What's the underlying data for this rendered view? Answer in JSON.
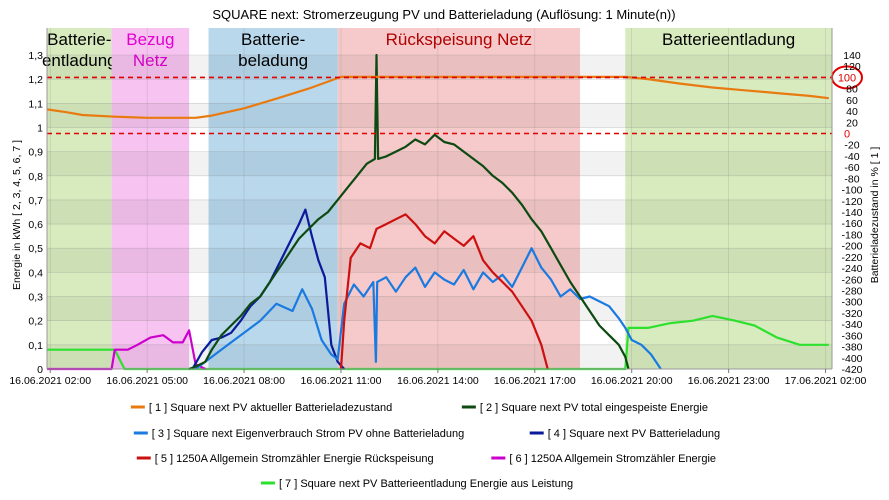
{
  "chart_data": {
    "type": "line",
    "title": "SQUARE next: Stromerzeugung PV und Batterieladung (Auflösung: 1 Minute(n))",
    "ylabel": "Energie in kWh [ 2, 3, 4, 5, 6, 7 ]",
    "y2label": "Batterieladezustand in % [ 1 ]",
    "ylim": [
      0,
      1.3
    ],
    "y2lim": [
      -420,
      140
    ],
    "y_ticks": [
      "0",
      "0,1",
      "0,2",
      "0,3",
      "0,4",
      "0,5",
      "0,6",
      "0,7",
      "0,8",
      "0,9",
      "1",
      "1,1",
      "1,2",
      "1,3"
    ],
    "y2_ticks": [
      "-420",
      "-400",
      "-380",
      "-360",
      "-340",
      "-320",
      "-300",
      "-280",
      "-260",
      "-240",
      "-220",
      "-200",
      "-180",
      "-160",
      "-140",
      "-120",
      "-100",
      "-80",
      "-60",
      "-40",
      "-20",
      "0",
      "20",
      "40",
      "60",
      "80",
      "100",
      "120",
      "140"
    ],
    "x_ticks": [
      {
        "t": 0,
        "label": "16.06.2021 02:00"
      },
      {
        "t": 3,
        "label": "16.06.2021 05:00"
      },
      {
        "t": 6,
        "label": "16.06.2021 08:00"
      },
      {
        "t": 9,
        "label": "16.06.2021 11:00"
      },
      {
        "t": 12,
        "label": "16.06.2021 14:00"
      },
      {
        "t": 15,
        "label": "16.06.2021 17:00"
      },
      {
        "t": 18,
        "label": "16.06.2021 20:00"
      },
      {
        "t": 21,
        "label": "16.06.2021 23:00"
      },
      {
        "t": 24,
        "label": "17.06.2021 02:00"
      }
    ],
    "xlim": [
      -0.1,
      24.2
    ],
    "grid": true,
    "zones": [
      {
        "label": "Batterie-\nentladung",
        "from": -0.1,
        "to": 1.9,
        "color": "#d8ebbf",
        "text_color": "#000000"
      },
      {
        "label": "Bezug\nNetz",
        "from": 1.9,
        "to": 4.3,
        "color": "#f7c3f0",
        "text_color": "#e000d0"
      },
      {
        "label": "Batterie-\nbeladung",
        "from": 4.9,
        "to": 8.9,
        "color": "#b9d8ec",
        "text_color": "#000000"
      },
      {
        "label": "Rückspeisung Netz",
        "from": 8.9,
        "to": 16.4,
        "color": "#f6caca",
        "text_color": "#b00000"
      },
      {
        "label": "Batterieentladung",
        "from": 17.8,
        "to": 24.2,
        "color": "#d8ebbf",
        "text_color": "#000000"
      }
    ],
    "reference_lines": [
      {
        "y2": 100,
        "label": "100",
        "color": "#e00000"
      },
      {
        "y2": 0,
        "label": "0",
        "color": "#e00000"
      }
    ],
    "series": [
      {
        "id": 1,
        "name": "[ 1 ] Square next PV aktueller Batterieladezustand",
        "color": "#e87a10",
        "axis": "y2",
        "points": [
          [
            -0.1,
            43
          ],
          [
            0.5,
            38
          ],
          [
            1,
            33
          ],
          [
            2,
            30
          ],
          [
            3,
            28
          ],
          [
            4.5,
            28
          ],
          [
            5,
            32
          ],
          [
            6,
            45
          ],
          [
            7,
            62
          ],
          [
            8,
            80
          ],
          [
            9,
            101
          ],
          [
            10,
            101
          ],
          [
            12,
            101
          ],
          [
            14,
            101
          ],
          [
            16,
            101
          ],
          [
            17.8,
            101
          ],
          [
            18.5,
            97
          ],
          [
            19.5,
            89
          ],
          [
            20.5,
            82
          ],
          [
            21.5,
            77
          ],
          [
            22.5,
            72
          ],
          [
            23.5,
            67
          ],
          [
            24.1,
            63
          ]
        ]
      },
      {
        "id": 2,
        "name": "[ 2 ] Square next PV total eingespeiste Energie",
        "color": "#0d4a12",
        "axis": "y",
        "points": [
          [
            4.3,
            0
          ],
          [
            4.5,
            0.01
          ],
          [
            4.8,
            0.03
          ],
          [
            5,
            0.08
          ],
          [
            5.3,
            0.14
          ],
          [
            5.6,
            0.18
          ],
          [
            5.9,
            0.22
          ],
          [
            6.2,
            0.27
          ],
          [
            6.5,
            0.3
          ],
          [
            6.8,
            0.36
          ],
          [
            7.1,
            0.42
          ],
          [
            7.4,
            0.48
          ],
          [
            7.7,
            0.54
          ],
          [
            8,
            0.58
          ],
          [
            8.3,
            0.62
          ],
          [
            8.6,
            0.65
          ],
          [
            8.9,
            0.7
          ],
          [
            9.2,
            0.75
          ],
          [
            9.5,
            0.8
          ],
          [
            9.8,
            0.85
          ],
          [
            10.05,
            0.87
          ],
          [
            10.1,
            1.3
          ],
          [
            10.15,
            0.87
          ],
          [
            10.4,
            0.88
          ],
          [
            10.7,
            0.9
          ],
          [
            11,
            0.92
          ],
          [
            11.3,
            0.95
          ],
          [
            11.6,
            0.93
          ],
          [
            11.9,
            0.97
          ],
          [
            12.2,
            0.94
          ],
          [
            12.5,
            0.93
          ],
          [
            12.8,
            0.9
          ],
          [
            13.1,
            0.87
          ],
          [
            13.4,
            0.84
          ],
          [
            13.7,
            0.8
          ],
          [
            14,
            0.77
          ],
          [
            14.3,
            0.73
          ],
          [
            14.6,
            0.68
          ],
          [
            14.9,
            0.62
          ],
          [
            15.2,
            0.57
          ],
          [
            15.5,
            0.5
          ],
          [
            15.8,
            0.43
          ],
          [
            16.1,
            0.36
          ],
          [
            16.4,
            0.3
          ],
          [
            16.7,
            0.24
          ],
          [
            17,
            0.18
          ],
          [
            17.3,
            0.14
          ],
          [
            17.6,
            0.1
          ],
          [
            17.8,
            0.05
          ],
          [
            17.9,
            0
          ]
        ]
      },
      {
        "id": 3,
        "name": "[ 3 ] Square next Eigenverbrauch Strom PV ohne Batterieladung",
        "color": "#1a7ae0",
        "axis": "y",
        "points": [
          [
            4.5,
            0
          ],
          [
            5,
            0.05
          ],
          [
            5.5,
            0.1
          ],
          [
            6,
            0.15
          ],
          [
            6.5,
            0.2
          ],
          [
            7,
            0.27
          ],
          [
            7.5,
            0.24
          ],
          [
            7.8,
            0.33
          ],
          [
            8.1,
            0.25
          ],
          [
            8.4,
            0.12
          ],
          [
            8.7,
            0.06
          ],
          [
            8.9,
            0.04
          ],
          [
            9.1,
            0.27
          ],
          [
            9.4,
            0.35
          ],
          [
            9.7,
            0.3
          ],
          [
            10,
            0.36
          ],
          [
            10.08,
            0.03
          ],
          [
            10.12,
            0.36
          ],
          [
            10.4,
            0.38
          ],
          [
            10.7,
            0.32
          ],
          [
            11,
            0.38
          ],
          [
            11.3,
            0.42
          ],
          [
            11.6,
            0.34
          ],
          [
            11.9,
            0.4
          ],
          [
            12.2,
            0.37
          ],
          [
            12.5,
            0.35
          ],
          [
            12.8,
            0.41
          ],
          [
            13.1,
            0.33
          ],
          [
            13.4,
            0.4
          ],
          [
            13.7,
            0.36
          ],
          [
            14,
            0.39
          ],
          [
            14.3,
            0.34
          ],
          [
            14.6,
            0.42
          ],
          [
            14.9,
            0.5
          ],
          [
            15.2,
            0.42
          ],
          [
            15.5,
            0.37
          ],
          [
            15.8,
            0.3
          ],
          [
            16.1,
            0.33
          ],
          [
            16.4,
            0.29
          ],
          [
            16.7,
            0.3
          ],
          [
            17,
            0.28
          ],
          [
            17.3,
            0.26
          ],
          [
            17.6,
            0.21
          ],
          [
            17.8,
            0.17
          ],
          [
            18,
            0.12
          ],
          [
            18.3,
            0.1
          ],
          [
            18.6,
            0.06
          ],
          [
            18.9,
            0
          ]
        ]
      },
      {
        "id": 4,
        "name": "[ 4 ] Square next PV Batterieladung",
        "color": "#0b1a9a",
        "axis": "y",
        "points": [
          [
            4.4,
            0
          ],
          [
            4.7,
            0.07
          ],
          [
            5,
            0.12
          ],
          [
            5.3,
            0.13
          ],
          [
            5.6,
            0.15
          ],
          [
            5.9,
            0.2
          ],
          [
            6.2,
            0.26
          ],
          [
            6.5,
            0.3
          ],
          [
            6.8,
            0.36
          ],
          [
            7.1,
            0.44
          ],
          [
            7.4,
            0.52
          ],
          [
            7.7,
            0.6
          ],
          [
            7.9,
            0.66
          ],
          [
            8.1,
            0.55
          ],
          [
            8.3,
            0.45
          ],
          [
            8.5,
            0.38
          ],
          [
            8.7,
            0.1
          ],
          [
            8.9,
            0.03
          ],
          [
            9.1,
            0
          ]
        ]
      },
      {
        "id": 5,
        "name": "[ 5 ] 1250A Allgemein Stromzähler Energie Rückspeisung",
        "color": "#cc1010",
        "axis": "y",
        "points": [
          [
            9,
            0
          ],
          [
            9.1,
            0.2
          ],
          [
            9.3,
            0.46
          ],
          [
            9.6,
            0.52
          ],
          [
            9.9,
            0.5
          ],
          [
            10.1,
            0.58
          ],
          [
            10.4,
            0.6
          ],
          [
            10.7,
            0.62
          ],
          [
            11,
            0.64
          ],
          [
            11.3,
            0.6
          ],
          [
            11.6,
            0.55
          ],
          [
            11.9,
            0.52
          ],
          [
            12.2,
            0.57
          ],
          [
            12.5,
            0.54
          ],
          [
            12.8,
            0.51
          ],
          [
            13.1,
            0.55
          ],
          [
            13.4,
            0.45
          ],
          [
            13.7,
            0.4
          ],
          [
            14,
            0.36
          ],
          [
            14.3,
            0.32
          ],
          [
            14.6,
            0.26
          ],
          [
            14.9,
            0.2
          ],
          [
            15.2,
            0.1
          ],
          [
            15.4,
            0
          ]
        ]
      },
      {
        "id": 6,
        "name": "[ 6 ] 1250A Allgemein Stromzähler Energie",
        "color": "#cc00cc",
        "axis": "y",
        "points": [
          [
            -0.1,
            0
          ],
          [
            1.9,
            0
          ],
          [
            2,
            0.08
          ],
          [
            2.4,
            0.08
          ],
          [
            2.7,
            0.1
          ],
          [
            3.1,
            0.13
          ],
          [
            3.5,
            0.14
          ],
          [
            3.8,
            0.11
          ],
          [
            4.1,
            0.11
          ],
          [
            4.3,
            0.16
          ],
          [
            4.5,
            0.02
          ],
          [
            4.8,
            0
          ]
        ]
      },
      {
        "id": 7,
        "name": "[ 7 ] Square next PV Batterieentladung Energie aus Leistung",
        "color": "#2ee02e",
        "axis": "y",
        "points": [
          [
            -0.1,
            0.08
          ],
          [
            1.9,
            0.08
          ],
          [
            2,
            0.08
          ],
          [
            2.3,
            0
          ],
          [
            17.8,
            0
          ],
          [
            17.9,
            0.17
          ],
          [
            18.5,
            0.17
          ],
          [
            19.2,
            0.19
          ],
          [
            19.9,
            0.2
          ],
          [
            20.5,
            0.22
          ],
          [
            21.2,
            0.2
          ],
          [
            21.8,
            0.18
          ],
          [
            22.5,
            0.13
          ],
          [
            23.2,
            0.1
          ],
          [
            24.1,
            0.1
          ]
        ]
      }
    ]
  }
}
